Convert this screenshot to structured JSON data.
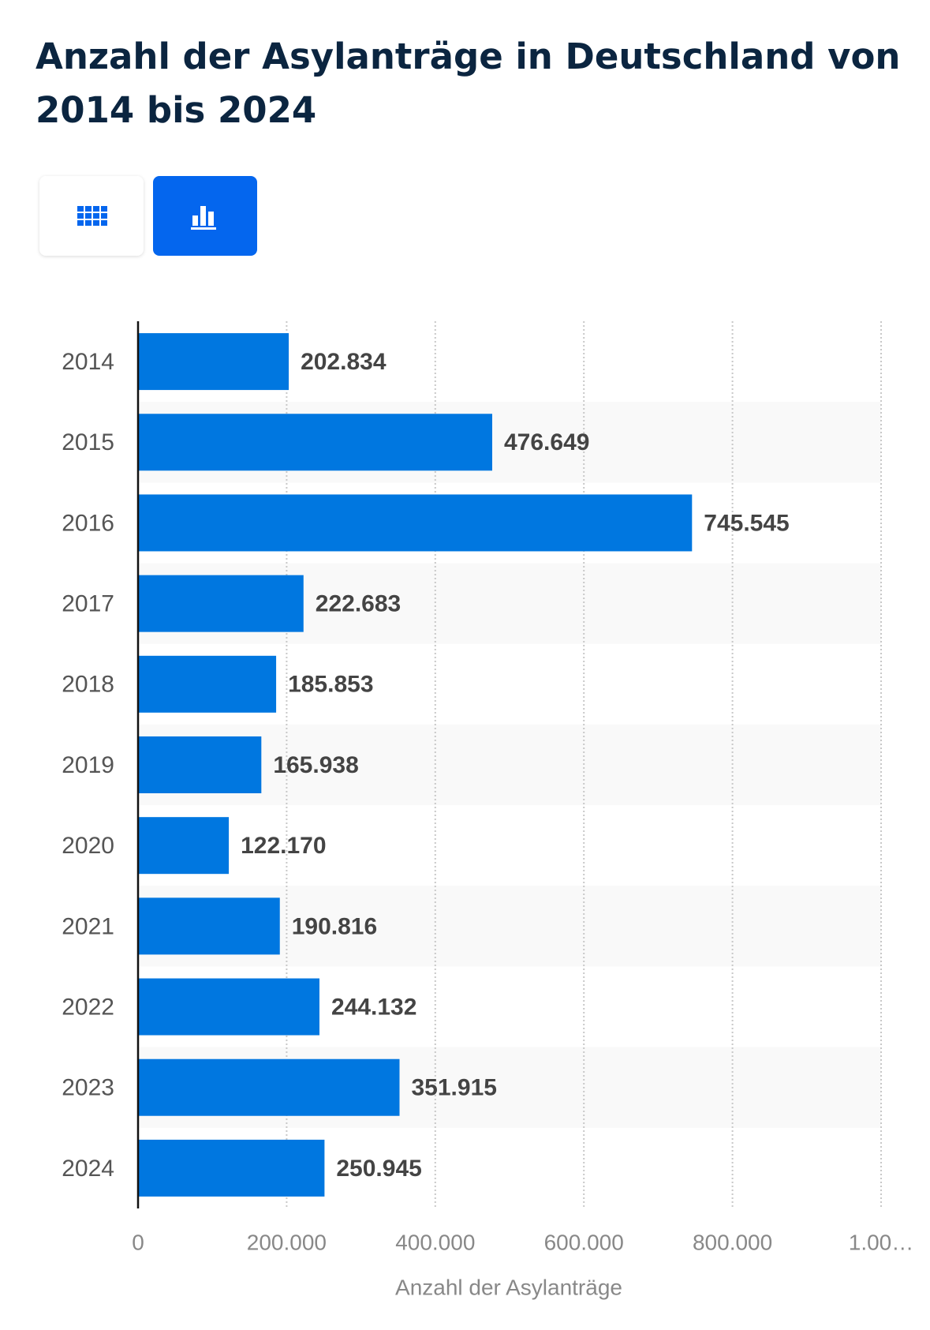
{
  "chart_data": {
    "type": "bar",
    "orientation": "horizontal",
    "title": "Anzahl der Asylanträge in Deutschland von 2014 bis 2024",
    "x_label": "Anzahl der Asylanträge",
    "categories": [
      "2014",
      "2015",
      "2016",
      "2017",
      "2018",
      "2019",
      "2020",
      "2021",
      "2022",
      "2023",
      "2024"
    ],
    "values": [
      202834,
      476649,
      745545,
      222683,
      185853,
      165938,
      122170,
      190816,
      244132,
      351915,
      250945
    ],
    "value_labels": [
      "202.834",
      "476.649",
      "745.545",
      "222.683",
      "185.853",
      "165.938",
      "122.170",
      "190.816",
      "244.132",
      "351.915",
      "250.945"
    ],
    "color": "#0077e0",
    "xlim": [
      0,
      1000000
    ],
    "xticks": [
      0,
      {
        "value": 200000,
        "label": "200.000"
      },
      {
        "value": 400000,
        "label": "400.000"
      },
      {
        "value": 600000,
        "label": "600.000"
      },
      {
        "value": 800000,
        "label": "800.000"
      },
      {
        "value": 1000000,
        "label": "1.00…"
      }
    ],
    "grid": true
  }
}
